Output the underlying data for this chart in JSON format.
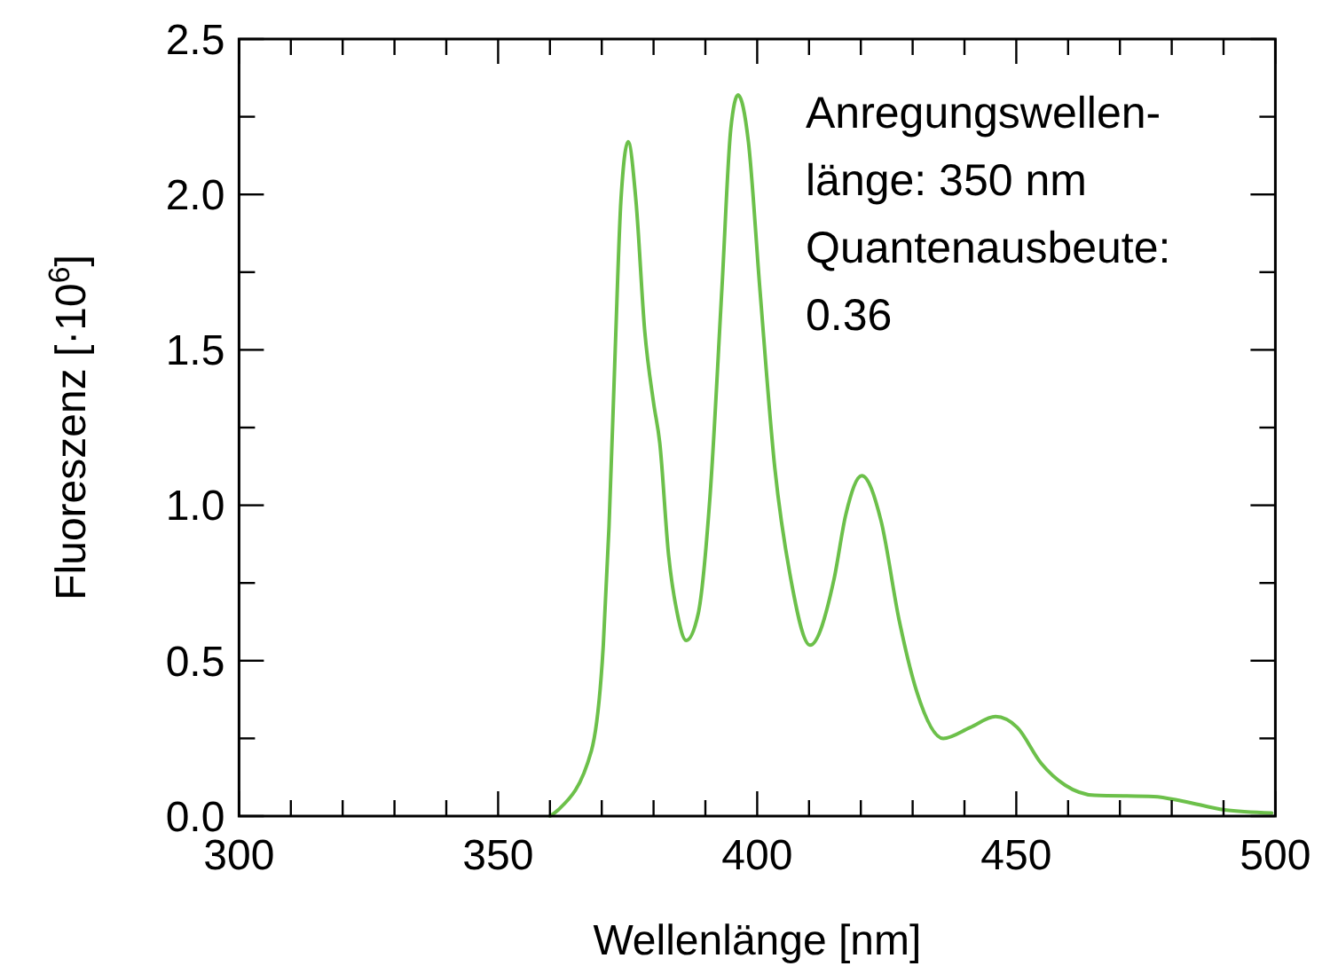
{
  "chart_data": {
    "type": "line",
    "xlabel": "Wellenlänge [nm]",
    "ylabel": "Fluoreszenz [·10$^{6}$]",
    "annotations": [
      "Anregungswellen-\nlänge: 350 nm\nQuantenausbeute:\n0.36"
    ],
    "xlim": [
      300,
      500
    ],
    "ylim": [
      0,
      2.5
    ],
    "xticks": [
      300,
      {
        "value": 310,
        "label": null
      },
      {
        "value": 320,
        "label": null
      },
      {
        "value": 330,
        "label": null
      },
      {
        "value": 340,
        "label": null
      },
      350,
      {
        "value": 360,
        "label": null
      },
      {
        "value": 370,
        "label": null
      },
      {
        "value": 380,
        "label": null
      },
      {
        "value": 390,
        "label": null
      },
      400,
      {
        "value": 410,
        "label": null
      },
      {
        "value": 420,
        "label": null
      },
      {
        "value": 430,
        "label": null
      },
      {
        "value": 440,
        "label": null
      },
      450,
      {
        "value": 460,
        "label": null
      },
      {
        "value": 470,
        "label": null
      },
      {
        "value": 480,
        "label": null
      },
      {
        "value": 490,
        "label": null
      },
      500
    ],
    "yticks": [
      {
        "value": 0,
        "label": "0.0"
      },
      {
        "value": 0.25,
        "label": null
      },
      {
        "value": 0.5,
        "label": "0.5"
      },
      {
        "value": 0.75,
        "label": null
      },
      {
        "value": 1,
        "label": "1.0"
      },
      {
        "value": 1.25,
        "label": null
      },
      {
        "value": 1.5,
        "label": "1.5"
      },
      {
        "value": 1.75,
        "label": null
      },
      {
        "value": 2,
        "label": "2.0"
      },
      {
        "value": 2.25,
        "label": null
      },
      {
        "value": 2.5,
        "label": "2.5"
      }
    ],
    "grid": false,
    "marker": "none",
    "line_style": "solid",
    "series": [
      {
        "color": "#6cc04a",
        "x": [
          360,
          361.6,
          368,
          370.3,
          371.4,
          372.6,
          373.7,
          375.1,
          376.6,
          378.3,
          380,
          381.2,
          382.9,
          384.6,
          386.3,
          388.6,
          390.9,
          393.2,
          394.9,
          396.3,
          398.3,
          400.5,
          403.4,
          406.3,
          410.2,
          414.8,
          417.1,
          420.2,
          423.9,
          427.4,
          430.8,
          435.9,
          441.1,
          446,
          450.2,
          454.8,
          459.4,
          465.1,
          476.5,
          482.2,
          490.2,
          499.3
        ],
        "values": [
          0,
          0.02,
          0.21,
          0.55,
          0.93,
          1.5,
          1.98,
          2.17,
          1.98,
          1.56,
          1.33,
          1.2,
          0.84,
          0.65,
          0.565,
          0.65,
          1.03,
          1.7,
          2.21,
          2.32,
          2.17,
          1.7,
          1.12,
          0.78,
          0.55,
          0.76,
          0.97,
          1.095,
          0.95,
          0.63,
          0.4,
          0.25,
          0.285,
          0.32,
          0.285,
          0.17,
          0.1,
          0.067,
          0.063,
          0.048,
          0.02,
          0.01
        ]
      }
    ]
  }
}
